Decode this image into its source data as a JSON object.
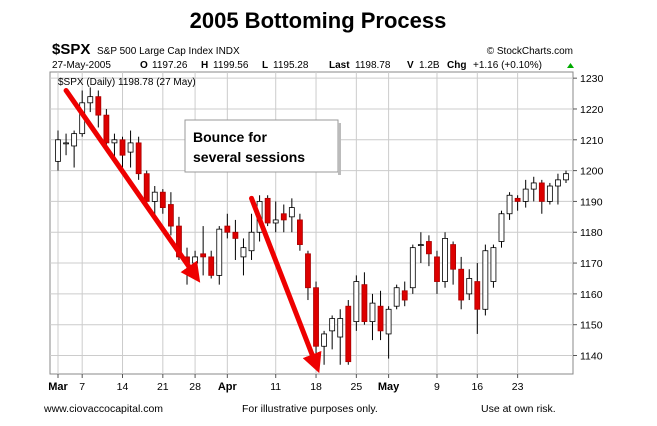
{
  "title": "2005 Bottoming Process",
  "header": {
    "symbol": "$SPX",
    "description": "S&P 500 Large Cap Index  INDX",
    "source": "© StockCharts.com",
    "date": "27-May-2005",
    "open_label": "O",
    "open": "1197.26",
    "high_label": "H",
    "high": "1199.56",
    "low_label": "L",
    "low": "1195.28",
    "last_label": "Last",
    "last": "1198.78",
    "volume_label": "V",
    "volume": "1.2B",
    "change_label": "Chg",
    "change": "+1.16 (+0.10%)"
  },
  "legend": "$SPX (Daily) 1198.78 (27 May)",
  "annotation": "Bounce for several sessions",
  "annotation_lines": [
    "Bounce for",
    "several sessions"
  ],
  "footer": {
    "left": "www.ciovaccocapital.com",
    "center": "For illustrative purposes only.",
    "right": "Use at own risk."
  },
  "colors": {
    "up": "#ffffff",
    "down": "#dd0000",
    "arrow": "#ee0000",
    "grid": "#cccccc"
  },
  "chart_data": {
    "type": "candlestick",
    "title": "2005 Bottoming Process",
    "ylim": [
      1134,
      1232
    ],
    "y_ticks": [
      1140,
      1150,
      1160,
      1170,
      1180,
      1190,
      1200,
      1210,
      1220,
      1230
    ],
    "x_tick_labels": [
      {
        "label": "Mar",
        "index": 0,
        "bold": true
      },
      {
        "label": "7",
        "index": 3
      },
      {
        "label": "14",
        "index": 8
      },
      {
        "label": "21",
        "index": 13
      },
      {
        "label": "28",
        "index": 17
      },
      {
        "label": "Apr",
        "index": 21,
        "bold": true
      },
      {
        "label": "11",
        "index": 27
      },
      {
        "label": "18",
        "index": 32
      },
      {
        "label": "25",
        "index": 37
      },
      {
        "label": "May",
        "index": 41,
        "bold": true
      },
      {
        "label": "9",
        "index": 47
      },
      {
        "label": "16",
        "index": 52
      },
      {
        "label": "23",
        "index": 57
      }
    ],
    "candles": [
      {
        "o": 1203,
        "h": 1213,
        "l": 1200,
        "c": 1210
      },
      {
        "o": 1209,
        "h": 1212,
        "l": 1205,
        "c": 1209
      },
      {
        "o": 1208,
        "h": 1213,
        "l": 1201,
        "c": 1212
      },
      {
        "o": 1212,
        "h": 1226,
        "l": 1211,
        "c": 1222
      },
      {
        "o": 1222,
        "h": 1227,
        "l": 1219,
        "c": 1224
      },
      {
        "o": 1224,
        "h": 1226,
        "l": 1214,
        "c": 1218
      },
      {
        "o": 1218,
        "h": 1220,
        "l": 1207,
        "c": 1209
      },
      {
        "o": 1209,
        "h": 1212,
        "l": 1203,
        "c": 1210
      },
      {
        "o": 1210,
        "h": 1211,
        "l": 1199,
        "c": 1205
      },
      {
        "o": 1206,
        "h": 1213,
        "l": 1201,
        "c": 1209
      },
      {
        "o": 1209,
        "h": 1211,
        "l": 1197,
        "c": 1199
      },
      {
        "o": 1199,
        "h": 1200,
        "l": 1189,
        "c": 1190
      },
      {
        "o": 1190,
        "h": 1195,
        "l": 1185,
        "c": 1193
      },
      {
        "o": 1193,
        "h": 1194,
        "l": 1186,
        "c": 1188
      },
      {
        "o": 1189,
        "h": 1193,
        "l": 1179,
        "c": 1182
      },
      {
        "o": 1182,
        "h": 1185,
        "l": 1171,
        "c": 1172
      },
      {
        "o": 1172,
        "h": 1175,
        "l": 1163,
        "c": 1170
      },
      {
        "o": 1170,
        "h": 1174,
        "l": 1165,
        "c": 1172
      },
      {
        "o": 1173,
        "h": 1182,
        "l": 1166,
        "c": 1172
      },
      {
        "o": 1172,
        "h": 1174,
        "l": 1165,
        "c": 1166
      },
      {
        "o": 1166,
        "h": 1182,
        "l": 1163,
        "c": 1181
      },
      {
        "o": 1182,
        "h": 1186,
        "l": 1178,
        "c": 1180
      },
      {
        "o": 1180,
        "h": 1184,
        "l": 1171,
        "c": 1178
      },
      {
        "o": 1172,
        "h": 1178,
        "l": 1166,
        "c": 1175
      },
      {
        "o": 1174,
        "h": 1186,
        "l": 1171,
        "c": 1180
      },
      {
        "o": 1180,
        "h": 1192,
        "l": 1177,
        "c": 1190
      },
      {
        "o": 1191,
        "h": 1192,
        "l": 1182,
        "c": 1183
      },
      {
        "o": 1183,
        "h": 1190,
        "l": 1180,
        "c": 1184
      },
      {
        "o": 1186,
        "h": 1189,
        "l": 1180,
        "c": 1184
      },
      {
        "o": 1185,
        "h": 1191,
        "l": 1180,
        "c": 1188
      },
      {
        "o": 1184,
        "h": 1186,
        "l": 1174,
        "c": 1176
      },
      {
        "o": 1173,
        "h": 1174,
        "l": 1158,
        "c": 1162
      },
      {
        "o": 1162,
        "h": 1164,
        "l": 1140,
        "c": 1143
      },
      {
        "o": 1143,
        "h": 1148,
        "l": 1137,
        "c": 1147
      },
      {
        "o": 1148,
        "h": 1153,
        "l": 1142,
        "c": 1152
      },
      {
        "o": 1146,
        "h": 1155,
        "l": 1137,
        "c": 1152
      },
      {
        "o": 1156,
        "h": 1158,
        "l": 1137,
        "c": 1138
      },
      {
        "o": 1151,
        "h": 1166,
        "l": 1148,
        "c": 1164
      },
      {
        "o": 1163,
        "h": 1167,
        "l": 1150,
        "c": 1151
      },
      {
        "o": 1151,
        "h": 1160,
        "l": 1145,
        "c": 1157
      },
      {
        "o": 1156,
        "h": 1161,
        "l": 1145,
        "c": 1148
      },
      {
        "o": 1147,
        "h": 1156,
        "l": 1139,
        "c": 1155
      },
      {
        "o": 1156,
        "h": 1163,
        "l": 1155,
        "c": 1162
      },
      {
        "o": 1161,
        "h": 1164,
        "l": 1156,
        "c": 1158
      },
      {
        "o": 1162,
        "h": 1176,
        "l": 1160,
        "c": 1175
      },
      {
        "o": 1176,
        "h": 1180,
        "l": 1170,
        "c": 1176
      },
      {
        "o": 1177,
        "h": 1179,
        "l": 1169,
        "c": 1173
      },
      {
        "o": 1172,
        "h": 1174,
        "l": 1160,
        "c": 1164
      },
      {
        "o": 1164,
        "h": 1180,
        "l": 1162,
        "c": 1178
      },
      {
        "o": 1176,
        "h": 1177,
        "l": 1163,
        "c": 1168
      },
      {
        "o": 1168,
        "h": 1172,
        "l": 1155,
        "c": 1158
      },
      {
        "o": 1160,
        "h": 1168,
        "l": 1158,
        "c": 1165
      },
      {
        "o": 1164,
        "h": 1170,
        "l": 1147,
        "c": 1155
      },
      {
        "o": 1155,
        "h": 1176,
        "l": 1153,
        "c": 1174
      },
      {
        "o": 1164,
        "h": 1176,
        "l": 1162,
        "c": 1175
      },
      {
        "o": 1177,
        "h": 1187,
        "l": 1175,
        "c": 1186
      },
      {
        "o": 1186,
        "h": 1193,
        "l": 1184,
        "c": 1192
      },
      {
        "o": 1191,
        "h": 1192,
        "l": 1187,
        "c": 1190
      },
      {
        "o": 1190,
        "h": 1197,
        "l": 1188,
        "c": 1194
      },
      {
        "o": 1194,
        "h": 1198,
        "l": 1190,
        "c": 1196
      },
      {
        "o": 1196,
        "h": 1197,
        "l": 1186,
        "c": 1190
      },
      {
        "o": 1190,
        "h": 1196,
        "l": 1189,
        "c": 1195
      },
      {
        "o": 1195,
        "h": 1199,
        "l": 1189,
        "c": 1197
      },
      {
        "o": 1197,
        "h": 1200,
        "l": 1196,
        "c": 1199
      }
    ],
    "arrows": [
      {
        "from": {
          "index": 1,
          "value": 1226
        },
        "to": {
          "index": 17,
          "value": 1166
        }
      },
      {
        "from": {
          "index": 24,
          "value": 1191
        },
        "to": {
          "index": 32,
          "value": 1137
        }
      }
    ]
  }
}
